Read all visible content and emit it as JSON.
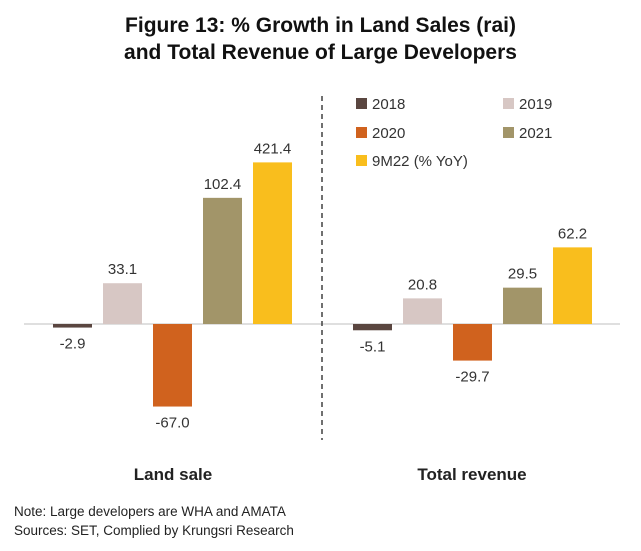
{
  "title_line1": "Figure 13: % Growth in Land Sales (rai)",
  "title_line2": "and Total Revenue of Large Developers",
  "note_line1": "Note: Large developers are WHA and AMATA",
  "note_line2": "Sources: SET, Complied by Krungsri Research",
  "chart_data": {
    "type": "bar",
    "categories": [
      "Land sale",
      "Total revenue"
    ],
    "series": [
      {
        "name": "2018",
        "values": [
          -2.9,
          -5.1
        ],
        "color": "#5a4640"
      },
      {
        "name": "2019",
        "values": [
          33.1,
          20.8
        ],
        "color": "#d7c7c4"
      },
      {
        "name": "2020",
        "values": [
          -67.0,
          -29.7
        ],
        "color": "#d0621e"
      },
      {
        "name": "2021",
        "values": [
          102.4,
          29.5
        ],
        "color": "#a29569"
      },
      {
        "name": "9M22 (% YoY)",
        "values": [
          421.4,
          62.2
        ],
        "color": "#f9be1d"
      }
    ],
    "value_labels": [
      [
        "-2.9",
        "33.1",
        "-67.0",
        "102.4",
        "421.4"
      ],
      [
        "-5.1",
        "20.8",
        "-29.7",
        "29.5",
        "62.2"
      ]
    ],
    "scale": "non-linear (broken) value axis",
    "legend_position": "top-right",
    "separator": "dashed vertical line between groups",
    "grid": false
  }
}
